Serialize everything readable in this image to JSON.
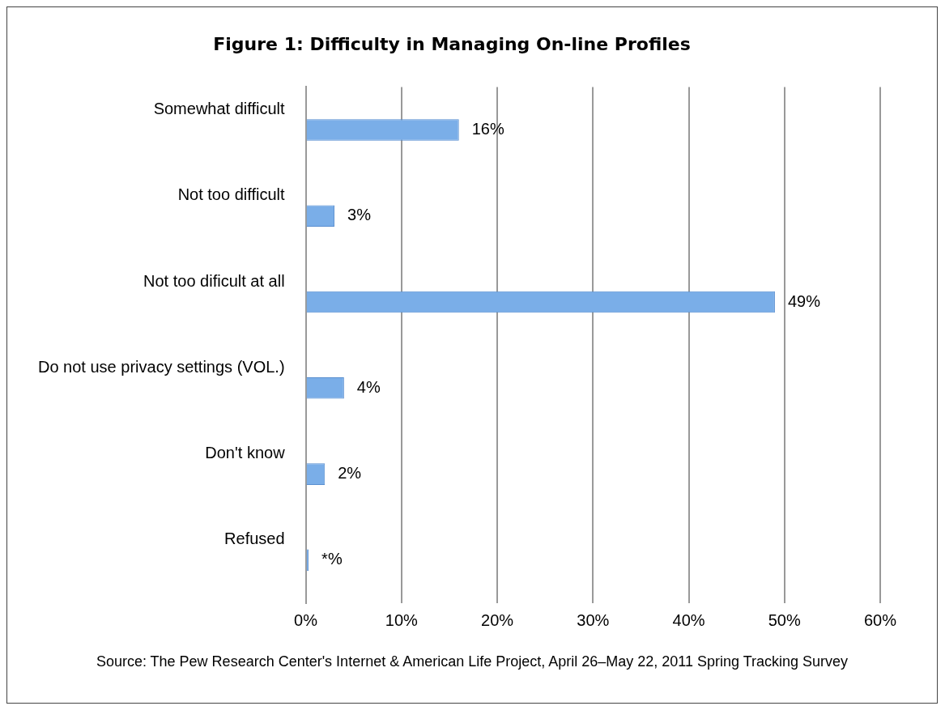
{
  "chart_data": {
    "type": "bar",
    "orientation": "horizontal",
    "title": "Figure 1: Difficulty in Managing On-line Profiles",
    "categories": [
      "Somewhat difficult",
      "Not too difficult",
      "Not too dificult at all",
      "Do not use privacy settings (VOL.)",
      "Don't know",
      "Refused"
    ],
    "values": [
      16,
      3,
      49,
      4,
      2,
      0.3
    ],
    "value_labels": [
      "16%",
      "3%",
      "49%",
      "4%",
      "2%",
      "*%"
    ],
    "color": "#7aaee8",
    "xlim": [
      0,
      60
    ],
    "xticks": [
      {
        "value": 0,
        "label": "0%"
      },
      {
        "value": 10,
        "label": "10%"
      },
      {
        "value": 20,
        "label": "20%"
      },
      {
        "value": 30,
        "label": "30%"
      },
      {
        "value": 40,
        "label": "40%"
      },
      {
        "value": 50,
        "label": "50%"
      },
      {
        "value": 60,
        "label": "60%"
      }
    ],
    "grid": "x",
    "legend": false,
    "annotations": [
      "Source: The Pew Research Center's Internet & American Life Project, April 26–May 22, 2011 Spring Tracking Survey"
    ]
  }
}
